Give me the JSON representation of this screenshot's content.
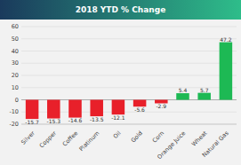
{
  "chart_data": {
    "type": "bar",
    "title": "2018 YTD % Change",
    "categories": [
      "Silver",
      "Copper",
      "Coffee",
      "Platinum",
      "Oil",
      "Gold",
      "Corn",
      "Orange Juice",
      "Wheat",
      "Natural Gas"
    ],
    "values": [
      -15.7,
      -15.3,
      -14.6,
      -13.5,
      -12.1,
      -5.6,
      -2.9,
      5.4,
      5.7,
      47.2
    ],
    "colors": [
      "#e8202a",
      "#e8202a",
      "#e8202a",
      "#e8202a",
      "#e8202a",
      "#e8202a",
      "#e8202a",
      "#1db954",
      "#1db954",
      "#1db954"
    ],
    "ylim": [
      -20,
      60
    ],
    "yticks": [
      -20,
      -10,
      0,
      10,
      20,
      30,
      40,
      50,
      60
    ],
    "grid": true,
    "data_labels": true
  }
}
